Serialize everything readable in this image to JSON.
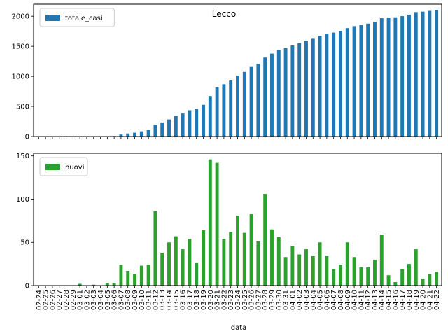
{
  "chart_data": {
    "type": "bar",
    "title": "Lecco",
    "xlabel": "data",
    "categories": [
      "02-24",
      "02-25",
      "02-26",
      "02-27",
      "02-28",
      "02-29",
      "03-01",
      "03-02",
      "03-03",
      "03-04",
      "03-05",
      "03-06",
      "03-07",
      "03-08",
      "03-09",
      "03-10",
      "03-11",
      "03-12",
      "03-13",
      "03-14",
      "03-15",
      "03-16",
      "03-17",
      "03-18",
      "03-19",
      "03-20",
      "03-21",
      "03-22",
      "03-23",
      "03-24",
      "03-25",
      "03-26",
      "03-27",
      "03-28",
      "03-29",
      "03-30",
      "03-31",
      "04-01",
      "04-02",
      "04-03",
      "04-04",
      "04-05",
      "04-06",
      "04-07",
      "04-08",
      "04-09",
      "04-10",
      "04-11",
      "04-12",
      "04-13",
      "04-14",
      "04-15",
      "04-16",
      "04-17",
      "04-18",
      "04-19",
      "04-20",
      "04-21",
      "04-22"
    ],
    "panels": [
      {
        "legend_position": "upper left",
        "ylim": [
          0,
          2200
        ],
        "yticks": [
          0,
          500,
          1000,
          1500,
          2000
        ],
        "series": [
          {
            "name": "totale_casi",
            "color": "#1f77b4",
            "values": [
              0,
              0,
              0,
              0,
              0,
              0,
              2,
              2,
              3,
              3,
              6,
              9,
              33,
              50,
              63,
              86,
              110,
              196,
              234,
              284,
              341,
              383,
              437,
              463,
              527,
              673,
              815,
              869,
              931,
              1012,
              1073,
              1156,
              1207,
              1313,
              1378,
              1434,
              1467,
              1513,
              1549,
              1591,
              1625,
              1675,
              1709,
              1728,
              1752,
              1802,
              1835,
              1856,
              1877,
              1907,
              1966,
              1978,
              1982,
              2001,
              2026,
              2068,
              2076,
              2089,
              2105
            ]
          }
        ]
      },
      {
        "legend_position": "upper left",
        "ylim": [
          0,
          153
        ],
        "yticks": [
          0,
          50,
          100,
          150
        ],
        "series": [
          {
            "name": "nuovi",
            "color": "#2ca02c",
            "values": [
              0,
              0,
              0,
              0,
              0,
              0,
              2,
              0,
              1,
              0,
              3,
              3,
              24,
              17,
              13,
              23,
              24,
              86,
              38,
              50,
              57,
              42,
              54,
              26,
              64,
              146,
              142,
              54,
              62,
              81,
              61,
              83,
              51,
              106,
              65,
              56,
              33,
              46,
              36,
              42,
              34,
              50,
              34,
              19,
              24,
              50,
              33,
              21,
              21,
              30,
              59,
              12,
              4,
              19,
              25,
              42,
              8,
              13,
              16
            ]
          }
        ]
      }
    ]
  }
}
